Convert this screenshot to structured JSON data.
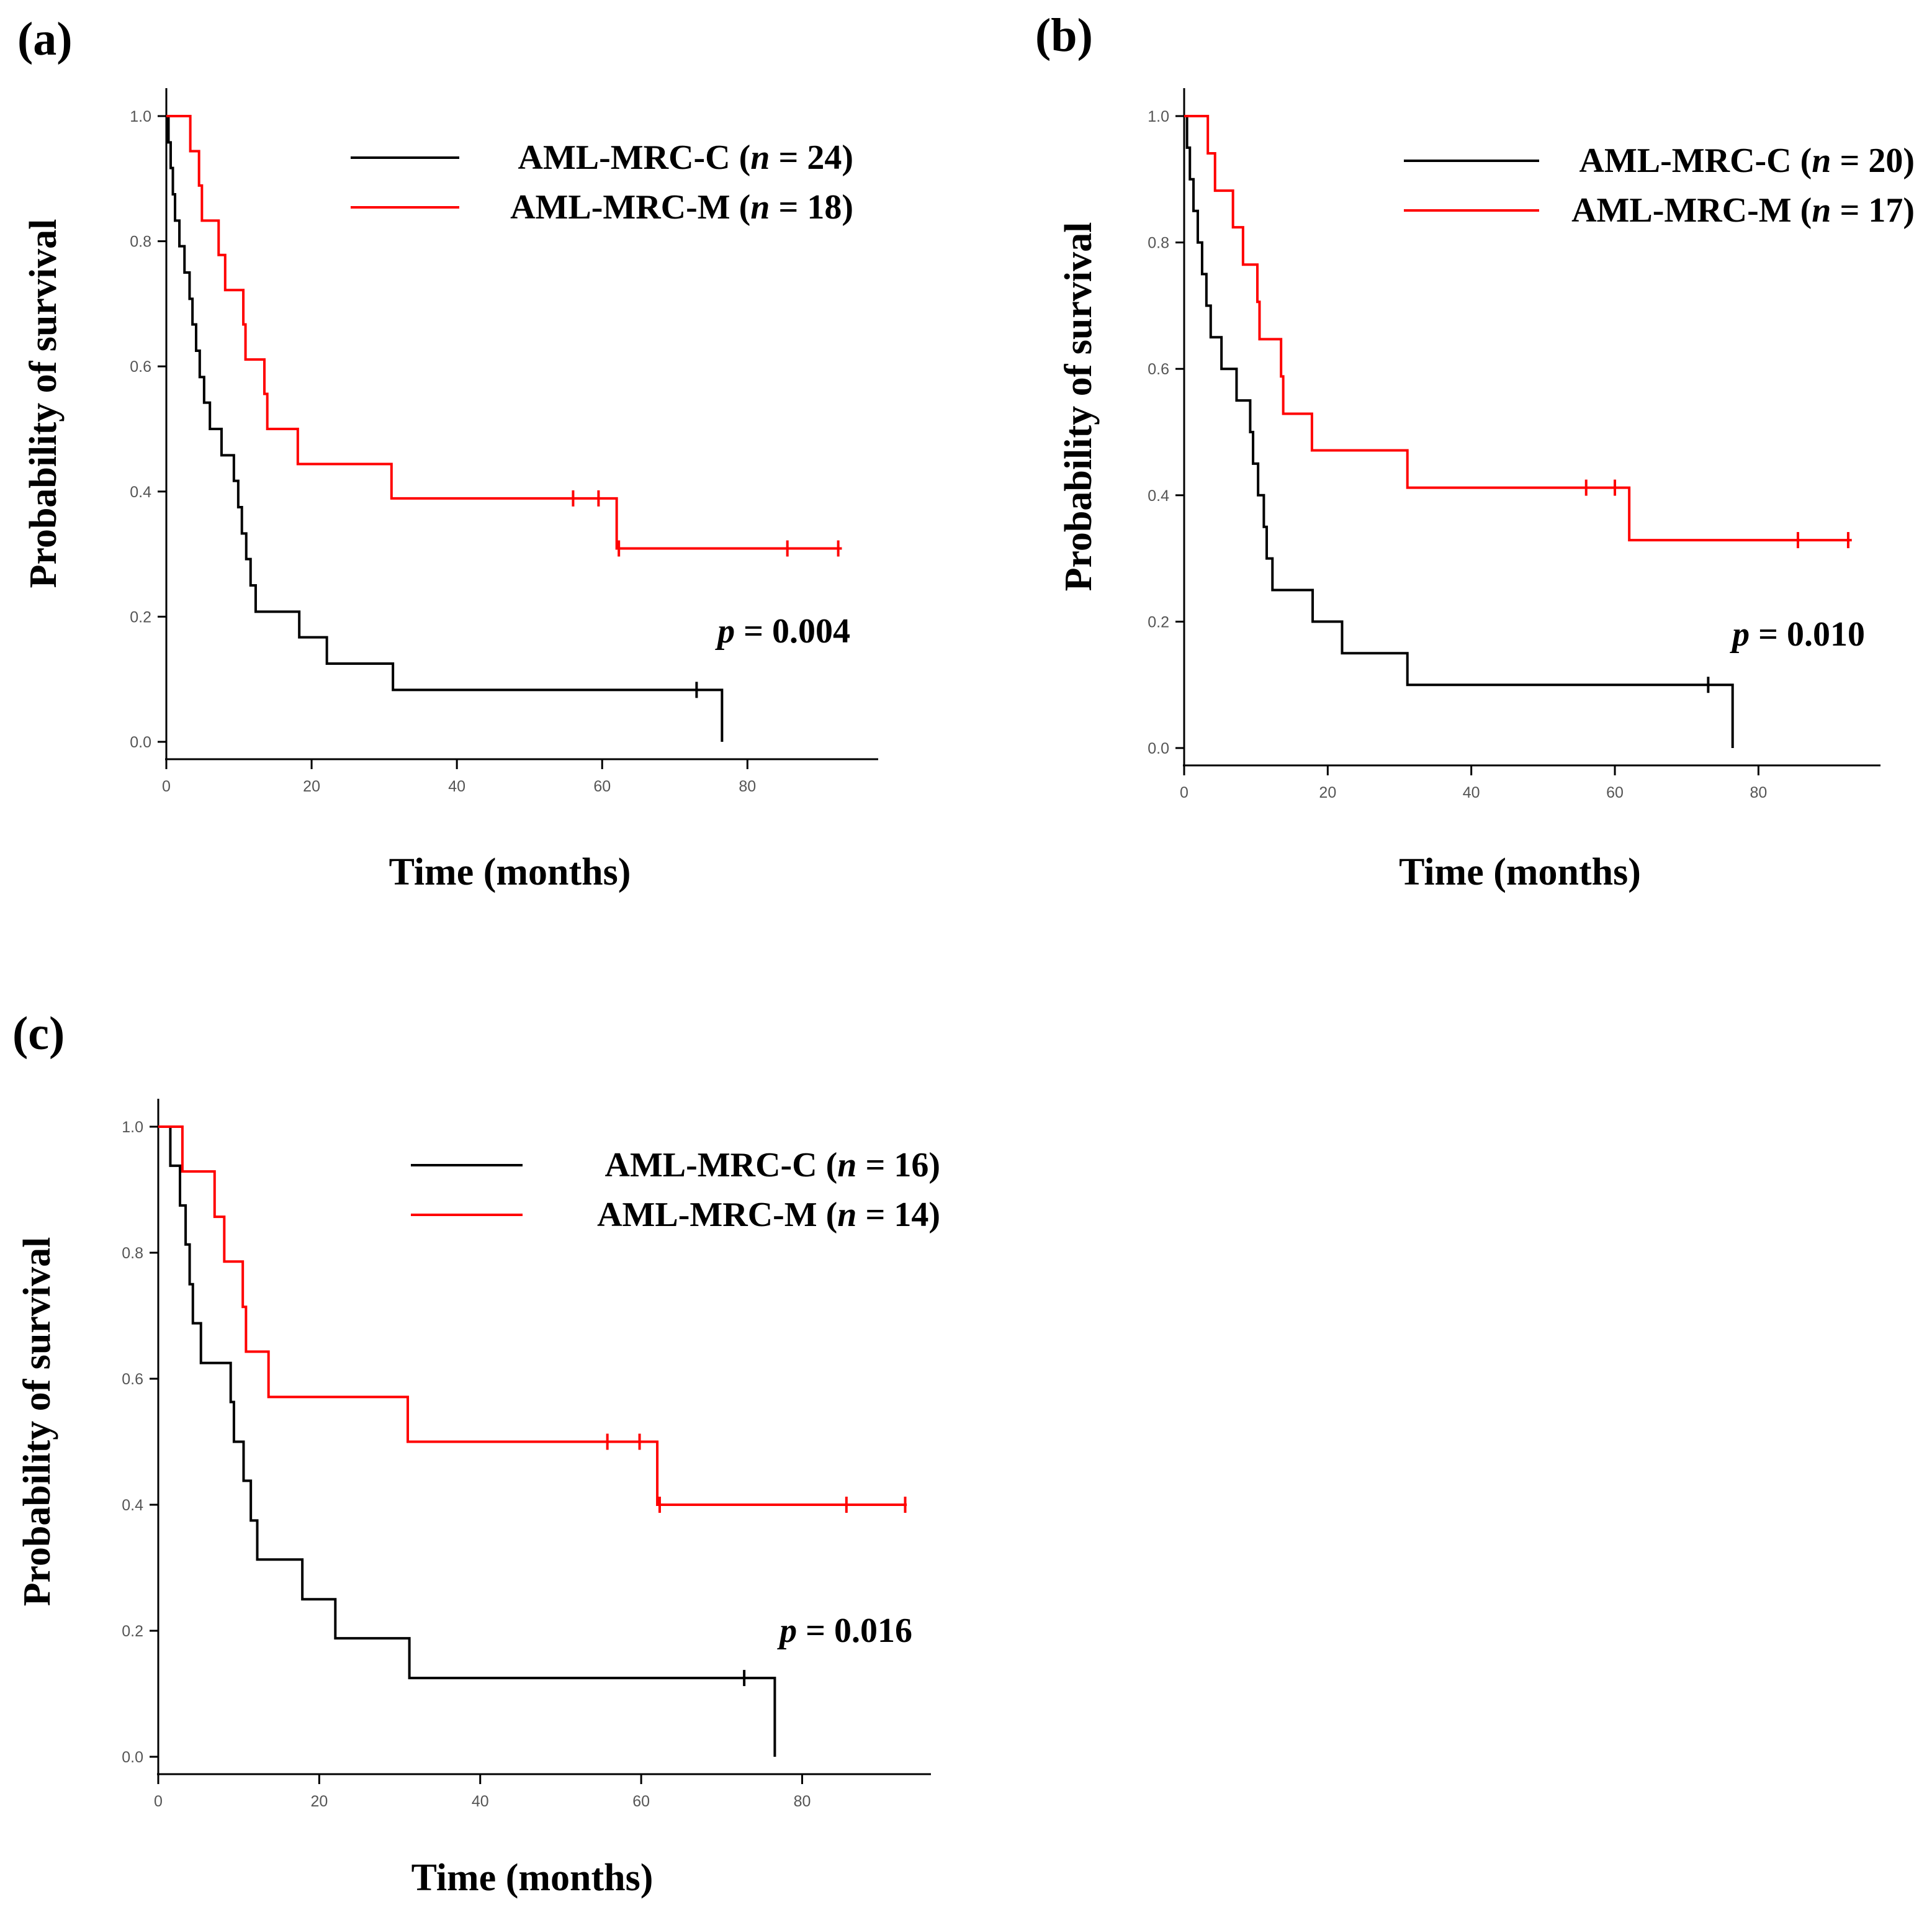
{
  "colors": {
    "group_c": "#000000",
    "group_m": "#ff0000",
    "axis": "#000000"
  },
  "chart_data": [
    {
      "type": "line",
      "panel_label": "(a)",
      "xlabel": "Time (months)",
      "ylabel": "Probability of survival",
      "xlim": [
        0,
        98
      ],
      "ylim": [
        0,
        1.04
      ],
      "x_ticks": [
        "0",
        "20",
        "40",
        "60",
        "80"
      ],
      "x_tick_values": [
        0,
        20,
        40,
        60,
        80
      ],
      "y_ticks": [
        "0.0",
        "0.2",
        "0.4",
        "0.6",
        "0.8",
        "1.0"
      ],
      "y_tick_values": [
        0,
        0.2,
        0.4,
        0.6,
        0.8,
        1.0
      ],
      "legend": {
        "position": "top-right"
      },
      "p_value": {
        "prefix": "p",
        "text": " = 0.004"
      },
      "series": [
        {
          "key": "C",
          "name": "AML-MRC-C",
          "n_prefix": "(",
          "n_italic": "n",
          "n_suffix": " = 24)",
          "steps": [
            [
              0,
              1.0
            ],
            [
              0.3,
              0.958
            ],
            [
              0.6,
              0.917
            ],
            [
              0.9,
              0.875
            ],
            [
              1.2,
              0.833
            ],
            [
              1.8,
              0.792
            ],
            [
              2.5,
              0.75
            ],
            [
              3.2,
              0.708
            ],
            [
              3.6,
              0.667
            ],
            [
              4.1,
              0.625
            ],
            [
              4.6,
              0.583
            ],
            [
              5.2,
              0.542
            ],
            [
              6.0,
              0.5
            ],
            [
              7.6,
              0.458
            ],
            [
              9.3,
              0.417
            ],
            [
              9.9,
              0.375
            ],
            [
              10.4,
              0.333
            ],
            [
              11.0,
              0.292
            ],
            [
              11.6,
              0.25
            ],
            [
              12.3,
              0.208
            ],
            [
              18.3,
              0.167
            ],
            [
              22.1,
              0.125
            ],
            [
              31.2,
              0.083
            ],
            [
              76.5,
              0.0
            ]
          ],
          "end_x": 76.5,
          "censors": [
            [
              73.0,
              0.083
            ]
          ]
        },
        {
          "key": "M",
          "name": "AML-MRC-M",
          "n_prefix": "(",
          "n_italic": "n",
          "n_suffix": " = 18)",
          "steps": [
            [
              0,
              1.0
            ],
            [
              3.3,
              0.944
            ],
            [
              4.5,
              0.889
            ],
            [
              4.9,
              0.833
            ],
            [
              7.2,
              0.778
            ],
            [
              8.1,
              0.722
            ],
            [
              10.6,
              0.667
            ],
            [
              10.9,
              0.611
            ],
            [
              13.5,
              0.556
            ],
            [
              13.9,
              0.5
            ],
            [
              18.1,
              0.444
            ],
            [
              31.0,
              0.389
            ],
            [
              62.0,
              0.309
            ]
          ],
          "end_x": 93,
          "censors": [
            [
              56,
              0.389
            ],
            [
              59.5,
              0.389
            ],
            [
              62.3,
              0.309
            ],
            [
              85.5,
              0.309
            ],
            [
              92.5,
              0.309
            ]
          ]
        }
      ]
    },
    {
      "type": "line",
      "panel_label": "(b)",
      "xlabel": "Time (months)",
      "ylabel": "Probability of survival",
      "xlim": [
        0,
        97
      ],
      "ylim": [
        0,
        1.04
      ],
      "x_ticks": [
        "0",
        "20",
        "40",
        "60",
        "80"
      ],
      "x_tick_values": [
        0,
        20,
        40,
        60,
        80
      ],
      "y_ticks": [
        "0.0",
        "0.2",
        "0.4",
        "0.6",
        "0.8",
        "1.0"
      ],
      "y_tick_values": [
        0,
        0.2,
        0.4,
        0.6,
        0.8,
        1.0
      ],
      "legend": {
        "position": "top-right"
      },
      "p_value": {
        "prefix": "p",
        "text": " = 0.010"
      },
      "series": [
        {
          "key": "C",
          "name": "AML-MRC-C",
          "n_prefix": "(",
          "n_italic": "n",
          "n_suffix": " = 20)",
          "steps": [
            [
              0,
              1.0
            ],
            [
              0.4,
              0.95
            ],
            [
              0.8,
              0.9
            ],
            [
              1.3,
              0.85
            ],
            [
              1.9,
              0.8
            ],
            [
              2.5,
              0.75
            ],
            [
              3.1,
              0.7
            ],
            [
              3.7,
              0.65
            ],
            [
              5.2,
              0.6
            ],
            [
              7.3,
              0.55
            ],
            [
              9.2,
              0.5
            ],
            [
              9.6,
              0.45
            ],
            [
              10.3,
              0.4
            ],
            [
              11.1,
              0.35
            ],
            [
              11.5,
              0.3
            ],
            [
              12.3,
              0.25
            ],
            [
              17.9,
              0.2
            ],
            [
              22.0,
              0.15
            ],
            [
              31.1,
              0.1
            ],
            [
              76.4,
              0.0
            ]
          ],
          "end_x": 76.4,
          "censors": [
            [
              73.0,
              0.1
            ]
          ]
        },
        {
          "key": "M",
          "name": "AML-MRC-M",
          "n_prefix": "(",
          "n_italic": "n",
          "n_suffix": " = 17)",
          "steps": [
            [
              0,
              1.0
            ],
            [
              3.3,
              0.941
            ],
            [
              4.3,
              0.882
            ],
            [
              6.8,
              0.824
            ],
            [
              8.2,
              0.765
            ],
            [
              10.2,
              0.706
            ],
            [
              10.5,
              0.647
            ],
            [
              13.5,
              0.588
            ],
            [
              13.8,
              0.529
            ],
            [
              17.8,
              0.471
            ],
            [
              31.1,
              0.412
            ],
            [
              62.0,
              0.329
            ]
          ],
          "end_x": 93,
          "censors": [
            [
              56,
              0.412
            ],
            [
              60,
              0.412
            ],
            [
              85.5,
              0.329
            ],
            [
              92.5,
              0.329
            ]
          ]
        }
      ]
    },
    {
      "type": "line",
      "panel_label": "(c)",
      "xlabel": "Time (months)",
      "ylabel": "Probability of survival",
      "xlim": [
        0,
        96
      ],
      "ylim": [
        0,
        1.04
      ],
      "x_ticks": [
        "0",
        "20",
        "40",
        "60",
        "80"
      ],
      "x_tick_values": [
        0,
        20,
        40,
        60,
        80
      ],
      "y_ticks": [
        "0.0",
        "0.2",
        "0.4",
        "0.6",
        "0.8",
        "1.0"
      ],
      "y_tick_values": [
        0,
        0.2,
        0.4,
        0.6,
        0.8,
        1.0
      ],
      "legend": {
        "position": "top-right"
      },
      "p_value": {
        "prefix": "p",
        "text": " = 0.016"
      },
      "series": [
        {
          "key": "C",
          "name": "AML-MRC-C",
          "n_prefix": "(",
          "n_italic": "n",
          "n_suffix": " = 16)",
          "steps": [
            [
              0,
              1.0
            ],
            [
              1.5,
              0.938
            ],
            [
              2.7,
              0.875
            ],
            [
              3.4,
              0.813
            ],
            [
              3.9,
              0.75
            ],
            [
              4.3,
              0.688
            ],
            [
              5.3,
              0.625
            ],
            [
              9.0,
              0.563
            ],
            [
              9.4,
              0.5
            ],
            [
              10.6,
              0.438
            ],
            [
              11.5,
              0.375
            ],
            [
              12.3,
              0.313
            ],
            [
              17.9,
              0.25
            ],
            [
              22.0,
              0.188
            ],
            [
              31.2,
              0.125
            ],
            [
              76.6,
              0.0
            ]
          ],
          "end_x": 76.6,
          "censors": [
            [
              72.8,
              0.125
            ]
          ]
        },
        {
          "key": "M",
          "name": "AML-MRC-M",
          "n_prefix": "(",
          "n_italic": "n",
          "n_suffix": " = 14)",
          "steps": [
            [
              0,
              1.0
            ],
            [
              3.0,
              0.929
            ],
            [
              7.0,
              0.857
            ],
            [
              8.2,
              0.786
            ],
            [
              10.5,
              0.714
            ],
            [
              10.9,
              0.643
            ],
            [
              13.7,
              0.571
            ],
            [
              31.0,
              0.5
            ],
            [
              62.0,
              0.4
            ]
          ],
          "end_x": 93,
          "censors": [
            [
              55.8,
              0.5
            ],
            [
              59.8,
              0.5
            ],
            [
              62.3,
              0.4
            ],
            [
              85.5,
              0.4
            ],
            [
              92.8,
              0.4
            ]
          ]
        }
      ]
    }
  ]
}
